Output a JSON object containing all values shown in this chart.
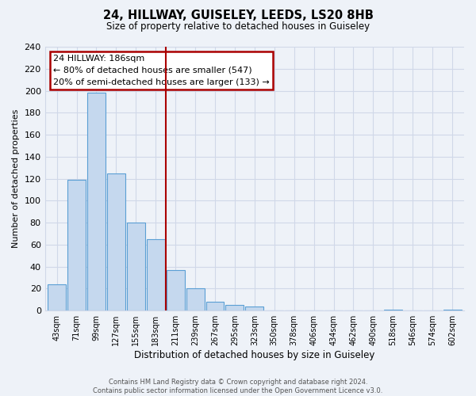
{
  "title": "24, HILLWAY, GUISELEY, LEEDS, LS20 8HB",
  "subtitle": "Size of property relative to detached houses in Guiseley",
  "xlabel": "Distribution of detached houses by size in Guiseley",
  "ylabel": "Number of detached properties",
  "bar_labels": [
    "43sqm",
    "71sqm",
    "99sqm",
    "127sqm",
    "155sqm",
    "183sqm",
    "211sqm",
    "239sqm",
    "267sqm",
    "295sqm",
    "323sqm",
    "350sqm",
    "378sqm",
    "406sqm",
    "434sqm",
    "462sqm",
    "490sqm",
    "518sqm",
    "546sqm",
    "574sqm",
    "602sqm"
  ],
  "bar_values": [
    24,
    119,
    198,
    125,
    80,
    65,
    37,
    20,
    8,
    5,
    4,
    0,
    0,
    0,
    0,
    0,
    0,
    1,
    0,
    0,
    1
  ],
  "bar_color": "#c5d8ee",
  "bar_edge_color": "#5a9fd4",
  "vline_x": 5.5,
  "vline_color": "#aa0000",
  "annotation_line1": "24 HILLWAY: 186sqm",
  "annotation_line2": "← 80% of detached houses are smaller (547)",
  "annotation_line3": "20% of semi-detached houses are larger (133) →",
  "annotation_box_color": "#ffffff",
  "annotation_box_edge": "#aa0000",
  "ylim": [
    0,
    240
  ],
  "yticks": [
    0,
    20,
    40,
    60,
    80,
    100,
    120,
    140,
    160,
    180,
    200,
    220,
    240
  ],
  "grid_color": "#d0d8e8",
  "footer_line1": "Contains HM Land Registry data © Crown copyright and database right 2024.",
  "footer_line2": "Contains public sector information licensed under the Open Government Licence v3.0.",
  "bg_color": "#eef2f8"
}
